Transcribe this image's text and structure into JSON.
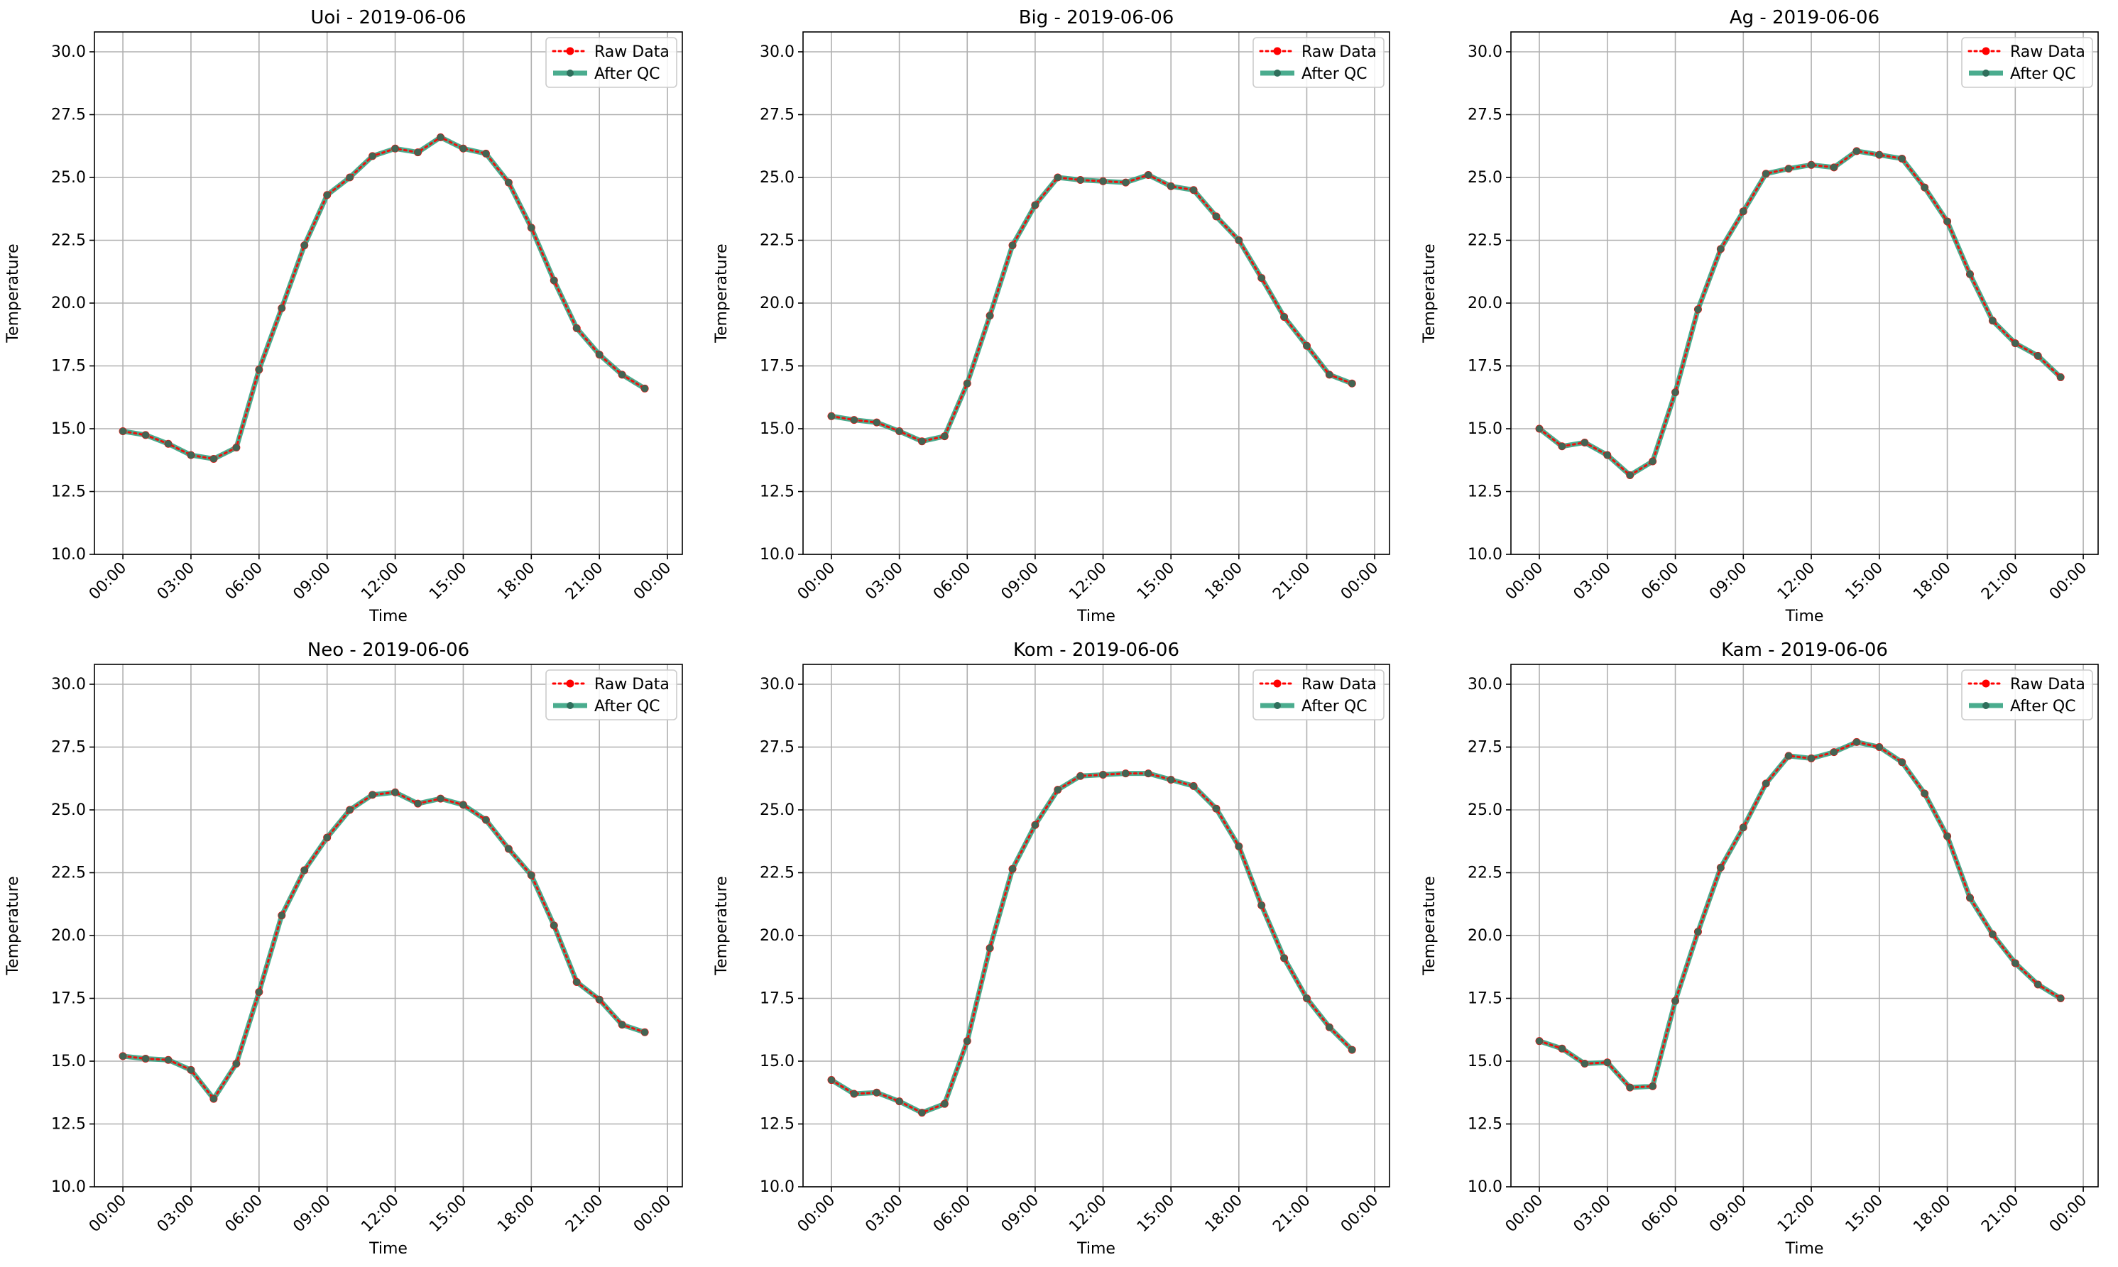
{
  "chart_data": [
    {
      "type": "line",
      "title": "Uoi - 2019-06-06",
      "xlabel": "Time",
      "ylabel": "Temperature",
      "ylim": [
        10.0,
        30.0
      ],
      "y_ticks": [
        "10.0",
        "12.5",
        "15.0",
        "17.5",
        "20.0",
        "22.5",
        "25.0",
        "27.5",
        "30.0"
      ],
      "x_ticks": [
        "00:00",
        "03:00",
        "06:00",
        "09:00",
        "12:00",
        "15:00",
        "18:00",
        "21:00",
        "00:00"
      ],
      "x": [
        "00:00",
        "01:00",
        "02:00",
        "03:00",
        "04:00",
        "05:00",
        "06:00",
        "07:00",
        "08:00",
        "09:00",
        "10:00",
        "11:00",
        "12:00",
        "13:00",
        "14:00",
        "15:00",
        "16:00",
        "17:00",
        "18:00",
        "19:00",
        "20:00",
        "21:00",
        "22:00",
        "23:00"
      ],
      "grid": true,
      "legend_position": "top-right",
      "series": [
        {
          "name": "Raw Data",
          "color": "#ff0000",
          "style": "dotted",
          "values": [
            14.9,
            14.75,
            14.4,
            13.95,
            13.8,
            14.25,
            17.35,
            19.8,
            22.3,
            24.3,
            25.0,
            25.85,
            26.15,
            26.0,
            26.6,
            26.15,
            25.95,
            24.8,
            23.0,
            20.9,
            19.0,
            17.95,
            17.15,
            16.6
          ]
        },
        {
          "name": "After QC",
          "color": "#2a9d7a",
          "style": "solid",
          "values": [
            14.9,
            14.75,
            14.4,
            13.95,
            13.8,
            14.25,
            17.35,
            19.8,
            22.3,
            24.3,
            25.0,
            25.85,
            26.15,
            26.0,
            26.6,
            26.15,
            25.95,
            24.8,
            23.0,
            20.9,
            19.0,
            17.95,
            17.15,
            16.6
          ]
        }
      ]
    },
    {
      "type": "line",
      "title": "Big - 2019-06-06",
      "xlabel": "Time",
      "ylabel": "Temperature",
      "ylim": [
        10.0,
        30.0
      ],
      "y_ticks": [
        "10.0",
        "12.5",
        "15.0",
        "17.5",
        "20.0",
        "22.5",
        "25.0",
        "27.5",
        "30.0"
      ],
      "x_ticks": [
        "00:00",
        "03:00",
        "06:00",
        "09:00",
        "12:00",
        "15:00",
        "18:00",
        "21:00",
        "00:00"
      ],
      "x": [
        "00:00",
        "01:00",
        "02:00",
        "03:00",
        "04:00",
        "05:00",
        "06:00",
        "07:00",
        "08:00",
        "09:00",
        "10:00",
        "11:00",
        "12:00",
        "13:00",
        "14:00",
        "15:00",
        "16:00",
        "17:00",
        "18:00",
        "19:00",
        "20:00",
        "21:00",
        "22:00",
        "23:00"
      ],
      "grid": true,
      "legend_position": "top-right",
      "series": [
        {
          "name": "Raw Data",
          "color": "#ff0000",
          "style": "dotted",
          "values": [
            15.5,
            15.35,
            15.25,
            14.9,
            14.5,
            14.7,
            16.8,
            19.5,
            22.3,
            23.9,
            25.0,
            24.9,
            24.85,
            24.8,
            25.1,
            24.65,
            24.5,
            23.45,
            22.5,
            21.0,
            19.45,
            18.3,
            17.15,
            16.8
          ]
        },
        {
          "name": "After QC",
          "color": "#2a9d7a",
          "style": "solid",
          "values": [
            15.5,
            15.35,
            15.25,
            14.9,
            14.5,
            14.7,
            16.8,
            19.5,
            22.3,
            23.9,
            25.0,
            24.9,
            24.85,
            24.8,
            25.1,
            24.65,
            24.5,
            23.45,
            22.5,
            21.0,
            19.45,
            18.3,
            17.15,
            16.8
          ]
        }
      ]
    },
    {
      "type": "line",
      "title": "Ag - 2019-06-06",
      "xlabel": "Time",
      "ylabel": "Temperature",
      "ylim": [
        10.0,
        30.0
      ],
      "y_ticks": [
        "10.0",
        "12.5",
        "15.0",
        "17.5",
        "20.0",
        "22.5",
        "25.0",
        "27.5",
        "30.0"
      ],
      "x_ticks": [
        "00:00",
        "03:00",
        "06:00",
        "09:00",
        "12:00",
        "15:00",
        "18:00",
        "21:00",
        "00:00"
      ],
      "x": [
        "00:00",
        "01:00",
        "02:00",
        "03:00",
        "04:00",
        "05:00",
        "06:00",
        "07:00",
        "08:00",
        "09:00",
        "10:00",
        "11:00",
        "12:00",
        "13:00",
        "14:00",
        "15:00",
        "16:00",
        "17:00",
        "18:00",
        "19:00",
        "20:00",
        "21:00",
        "22:00",
        "23:00"
      ],
      "grid": true,
      "legend_position": "top-right",
      "series": [
        {
          "name": "Raw Data",
          "color": "#ff0000",
          "style": "dotted",
          "values": [
            15.0,
            14.3,
            14.45,
            13.95,
            13.15,
            13.7,
            16.45,
            19.75,
            22.15,
            23.65,
            25.15,
            25.35,
            25.5,
            25.4,
            26.05,
            25.9,
            25.75,
            24.6,
            23.25,
            21.15,
            19.3,
            18.4,
            17.9,
            17.05
          ]
        },
        {
          "name": "After QC",
          "color": "#2a9d7a",
          "style": "solid",
          "values": [
            15.0,
            14.3,
            14.45,
            13.95,
            13.15,
            13.7,
            16.45,
            19.75,
            22.15,
            23.65,
            25.15,
            25.35,
            25.5,
            25.4,
            26.05,
            25.9,
            25.75,
            24.6,
            23.25,
            21.15,
            19.3,
            18.4,
            17.9,
            17.05
          ]
        }
      ]
    },
    {
      "type": "line",
      "title": "Neo - 2019-06-06",
      "xlabel": "Time",
      "ylabel": "Temperature",
      "ylim": [
        10.0,
        30.0
      ],
      "y_ticks": [
        "10.0",
        "12.5",
        "15.0",
        "17.5",
        "20.0",
        "22.5",
        "25.0",
        "27.5",
        "30.0"
      ],
      "x_ticks": [
        "00:00",
        "03:00",
        "06:00",
        "09:00",
        "12:00",
        "15:00",
        "18:00",
        "21:00",
        "00:00"
      ],
      "x": [
        "00:00",
        "01:00",
        "02:00",
        "03:00",
        "04:00",
        "05:00",
        "06:00",
        "07:00",
        "08:00",
        "09:00",
        "10:00",
        "11:00",
        "12:00",
        "13:00",
        "14:00",
        "15:00",
        "16:00",
        "17:00",
        "18:00",
        "19:00",
        "20:00",
        "21:00",
        "22:00",
        "23:00"
      ],
      "grid": true,
      "legend_position": "top-right",
      "series": [
        {
          "name": "Raw Data",
          "color": "#ff0000",
          "style": "dotted",
          "values": [
            15.2,
            15.1,
            15.05,
            14.65,
            13.5,
            14.9,
            17.75,
            20.8,
            22.6,
            23.9,
            25.0,
            25.6,
            25.7,
            25.25,
            25.45,
            25.2,
            24.6,
            23.45,
            22.4,
            20.4,
            18.15,
            17.45,
            16.45,
            16.15
          ]
        },
        {
          "name": "After QC",
          "color": "#2a9d7a",
          "style": "solid",
          "values": [
            15.2,
            15.1,
            15.05,
            14.65,
            13.5,
            14.9,
            17.75,
            20.8,
            22.6,
            23.9,
            25.0,
            25.6,
            25.7,
            25.25,
            25.45,
            25.2,
            24.6,
            23.45,
            22.4,
            20.4,
            18.15,
            17.45,
            16.45,
            16.15
          ]
        }
      ]
    },
    {
      "type": "line",
      "title": "Kom - 2019-06-06",
      "xlabel": "Time",
      "ylabel": "Temperature",
      "ylim": [
        10.0,
        30.0
      ],
      "y_ticks": [
        "10.0",
        "12.5",
        "15.0",
        "17.5",
        "20.0",
        "22.5",
        "25.0",
        "27.5",
        "30.0"
      ],
      "x_ticks": [
        "00:00",
        "03:00",
        "06:00",
        "09:00",
        "12:00",
        "15:00",
        "18:00",
        "21:00",
        "00:00"
      ],
      "x": [
        "00:00",
        "01:00",
        "02:00",
        "03:00",
        "04:00",
        "05:00",
        "06:00",
        "07:00",
        "08:00",
        "09:00",
        "10:00",
        "11:00",
        "12:00",
        "13:00",
        "14:00",
        "15:00",
        "16:00",
        "17:00",
        "18:00",
        "19:00",
        "20:00",
        "21:00",
        "22:00",
        "23:00"
      ],
      "grid": true,
      "legend_position": "top-right",
      "series": [
        {
          "name": "Raw Data",
          "color": "#ff0000",
          "style": "dotted",
          "values": [
            14.25,
            13.7,
            13.75,
            13.4,
            12.95,
            13.3,
            15.8,
            19.5,
            22.65,
            24.4,
            25.8,
            26.35,
            26.4,
            26.45,
            26.45,
            26.2,
            25.95,
            25.05,
            23.55,
            21.2,
            19.1,
            17.5,
            16.35,
            15.45
          ]
        },
        {
          "name": "After QC",
          "color": "#2a9d7a",
          "style": "solid",
          "values": [
            14.25,
            13.7,
            13.75,
            13.4,
            12.95,
            13.3,
            15.8,
            19.5,
            22.65,
            24.4,
            25.8,
            26.35,
            26.4,
            26.45,
            26.45,
            26.2,
            25.95,
            25.05,
            23.55,
            21.2,
            19.1,
            17.5,
            16.35,
            15.45
          ]
        }
      ]
    },
    {
      "type": "line",
      "title": "Kam - 2019-06-06",
      "xlabel": "Time",
      "ylabel": "Temperature",
      "ylim": [
        10.0,
        30.0
      ],
      "y_ticks": [
        "10.0",
        "12.5",
        "15.0",
        "17.5",
        "20.0",
        "22.5",
        "25.0",
        "27.5",
        "30.0"
      ],
      "x_ticks": [
        "00:00",
        "03:00",
        "06:00",
        "09:00",
        "12:00",
        "15:00",
        "18:00",
        "21:00",
        "00:00"
      ],
      "x": [
        "00:00",
        "01:00",
        "02:00",
        "03:00",
        "04:00",
        "05:00",
        "06:00",
        "07:00",
        "08:00",
        "09:00",
        "10:00",
        "11:00",
        "12:00",
        "13:00",
        "14:00",
        "15:00",
        "16:00",
        "17:00",
        "18:00",
        "19:00",
        "20:00",
        "21:00",
        "22:00",
        "23:00"
      ],
      "grid": true,
      "legend_position": "top-right",
      "series": [
        {
          "name": "Raw Data",
          "color": "#ff0000",
          "style": "dotted",
          "values": [
            15.8,
            15.5,
            14.9,
            14.95,
            13.95,
            14.0,
            17.4,
            20.15,
            22.7,
            24.3,
            26.05,
            27.15,
            27.05,
            27.3,
            27.7,
            27.5,
            26.9,
            25.65,
            23.95,
            21.5,
            20.05,
            18.9,
            18.05,
            17.5
          ]
        },
        {
          "name": "After QC",
          "color": "#2a9d7a",
          "style": "solid",
          "values": [
            15.8,
            15.5,
            14.9,
            14.95,
            13.95,
            14.0,
            17.4,
            20.15,
            22.7,
            24.3,
            26.05,
            27.15,
            27.05,
            27.3,
            27.7,
            27.5,
            26.9,
            25.65,
            23.95,
            21.5,
            20.05,
            18.9,
            18.05,
            17.5
          ]
        }
      ]
    }
  ]
}
